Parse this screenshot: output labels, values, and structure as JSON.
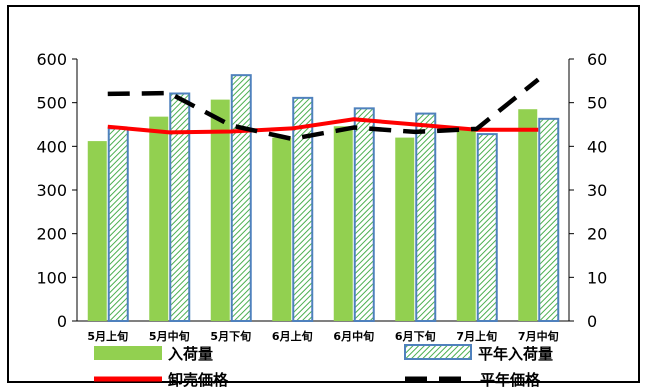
{
  "chart_data": {
    "type": "bar",
    "title": "",
    "xlabel": "",
    "ylabel": "",
    "y2label": "",
    "categories": [
      "5月上旬",
      "5月中旬",
      "5月下旬",
      "6月上旬",
      "6月中旬",
      "6月下旬",
      "7月上旬",
      "7月中旬"
    ],
    "ylim": [
      0,
      600
    ],
    "y2lim": [
      0,
      60
    ],
    "yticks": [
      "0",
      "100",
      "200",
      "300",
      "400",
      "500",
      "600"
    ],
    "y2ticks": [
      "0",
      "10",
      "20",
      "30",
      "40",
      "50",
      "60"
    ],
    "grid": false,
    "legend_position": "bottom",
    "series": [
      {
        "name": "入荷量",
        "type": "bar",
        "axis": "left",
        "color": "#92D050",
        "values": [
          412,
          468,
          507,
          420,
          446,
          420,
          440,
          485
        ]
      },
      {
        "name": "平年入荷量",
        "type": "bar",
        "axis": "left",
        "pattern": "diagonal-hatch",
        "color": "#4F81BD",
        "hatch_color": "#4CAF50",
        "values": [
          441,
          521,
          563,
          511,
          487,
          475,
          428,
          463
        ]
      },
      {
        "name": "卸売価格",
        "type": "line",
        "axis": "right",
        "color": "#FF0000",
        "style": "solid",
        "values": [
          44.5,
          43.2,
          43.4,
          44.1,
          46.2,
          45.0,
          43.8,
          43.8
        ]
      },
      {
        "name": "平年価格",
        "type": "line",
        "axis": "right",
        "color": "#000000",
        "style": "dashed",
        "values": [
          52.0,
          52.2,
          44.8,
          41.7,
          44.3,
          43.3,
          44.0,
          55.3
        ]
      }
    ]
  }
}
